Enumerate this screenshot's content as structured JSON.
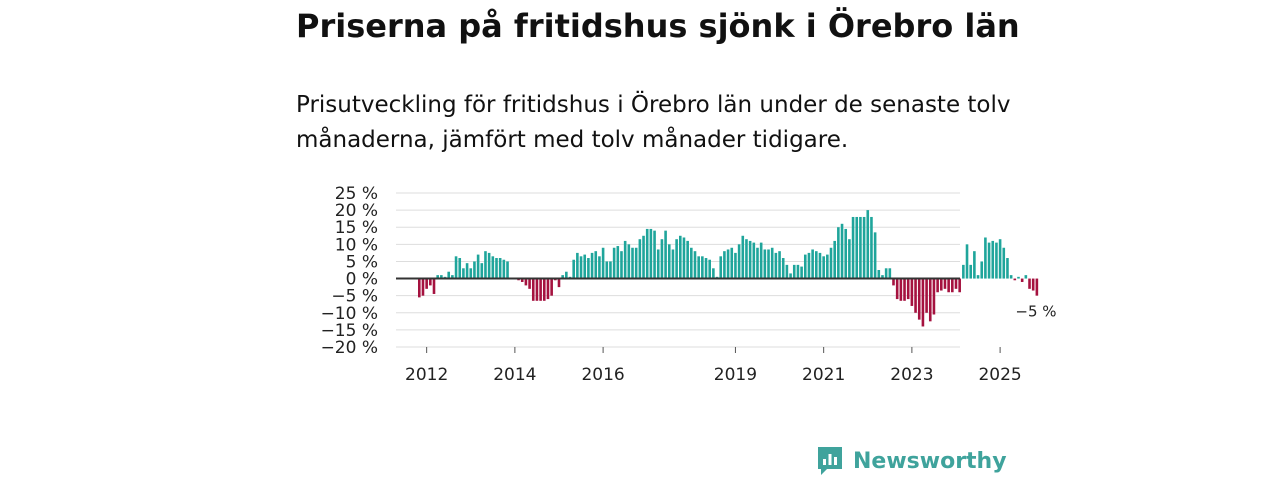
{
  "title": "Priserna på fritidshus sjönk i Örebro län",
  "subtitle": "Prisutveckling för fritidshus i Örebro län under de senaste tolv månaderna, jämfört med tolv månader tidigare.",
  "brand": {
    "name": "Newsworthy",
    "logo": "newsworthy-logo-icon"
  },
  "colors": {
    "positive": "#1fa59b",
    "negative": "#a5123f",
    "grid": "#dddddd",
    "zero_line": "#333333",
    "brand": "#3fa39c"
  },
  "chart_data": {
    "type": "bar",
    "ylim": [
      -20,
      25
    ],
    "yticks": [
      25,
      20,
      15,
      10,
      5,
      0,
      -5,
      -10,
      -15,
      -20
    ],
    "ytick_labels": [
      "25 %",
      "20 %",
      "15 %",
      "10 %",
      "5 %",
      "0 %",
      "−5 %",
      "−10 %",
      "−15 %",
      "−20 %"
    ],
    "xtick_labels": [
      "2012",
      "2014",
      "2016",
      "2019",
      "2021",
      "2023",
      "2025"
    ],
    "start": "2011-11",
    "frequency": "monthly",
    "annotation": {
      "text": "−5 %",
      "target": "last"
    },
    "values": [
      -5.5,
      -5,
      -3,
      -2,
      -4.5,
      1,
      1,
      0.5,
      2,
      1,
      6.5,
      6,
      3,
      4.5,
      3,
      5,
      7,
      4.5,
      8,
      7.5,
      6.5,
      6,
      6,
      5.5,
      5,
      0,
      0,
      -0.5,
      -1,
      -2,
      -3,
      -6.5,
      -6.5,
      -6.5,
      -6.5,
      -6,
      -5,
      -0.5,
      -2.5,
      1,
      2,
      0.5,
      5.5,
      7.5,
      6.5,
      7,
      6,
      7.5,
      8,
      6.5,
      9,
      5,
      5,
      9,
      9.5,
      8,
      11,
      10,
      9,
      9,
      11.5,
      12.5,
      14.5,
      14.5,
      14,
      8.5,
      11.5,
      14,
      10,
      8.5,
      11.5,
      12.5,
      12,
      11,
      9,
      8,
      6.5,
      6.5,
      6,
      5.5,
      3,
      0.5,
      6.5,
      8,
      8.5,
      9,
      7.5,
      10,
      12.5,
      11.5,
      11,
      10.5,
      9,
      10.5,
      8.5,
      8.5,
      9,
      7.5,
      8,
      6,
      4,
      1.5,
      4,
      4,
      3.5,
      7,
      7.5,
      8.5,
      8,
      7.5,
      6.5,
      7,
      9,
      11,
      15,
      16,
      14.5,
      11.5,
      18,
      18,
      18,
      18,
      20,
      18,
      13.5,
      2.5,
      1,
      3,
      3,
      -2,
      -6,
      -6.5,
      -6.5,
      -6,
      -8,
      -10,
      -12,
      -14,
      -10,
      -12.5,
      -10.5,
      -4,
      -3.5,
      -3,
      -4,
      -4,
      -3,
      -4,
      4,
      10,
      4,
      8,
      1,
      5,
      12,
      10.5,
      11,
      10.5,
      11.5,
      9,
      6,
      1,
      -0.5,
      0.5,
      -1,
      1,
      -3,
      -3.5,
      -5
    ]
  }
}
